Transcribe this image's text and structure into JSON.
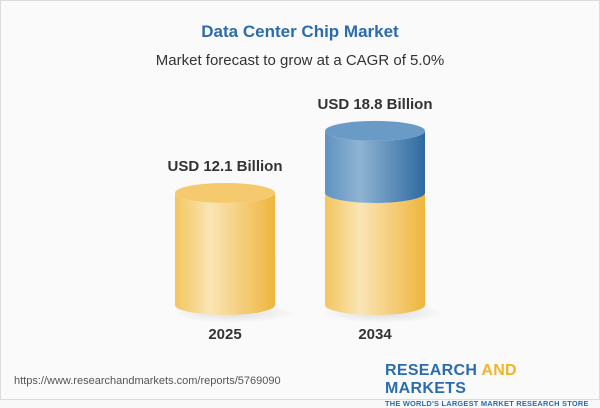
{
  "chart_data": {
    "type": "bar",
    "style": "3d-cylinder",
    "title": "Data Center Chip Market",
    "subtitle": "Market forecast to grow at a CAGR of 5.0%",
    "categories": [
      "2025",
      "2034"
    ],
    "values": [
      12.1,
      18.8
    ],
    "data_labels": [
      "USD 12.1 Billion",
      "USD 18.8 Billion"
    ],
    "unit": "USD Billion",
    "colors": {
      "base": "#f2c15a",
      "growth": "#4a84b6"
    },
    "grid": false
  },
  "footer": {
    "url": "https://www.researchandmarkets.com/reports/5769090",
    "logo_part1": "RESEARCH ",
    "logo_part2": "AND",
    "logo_part3": " MARKETS",
    "tagline": "THE WORLD'S LARGEST MARKET RESEARCH STORE"
  }
}
